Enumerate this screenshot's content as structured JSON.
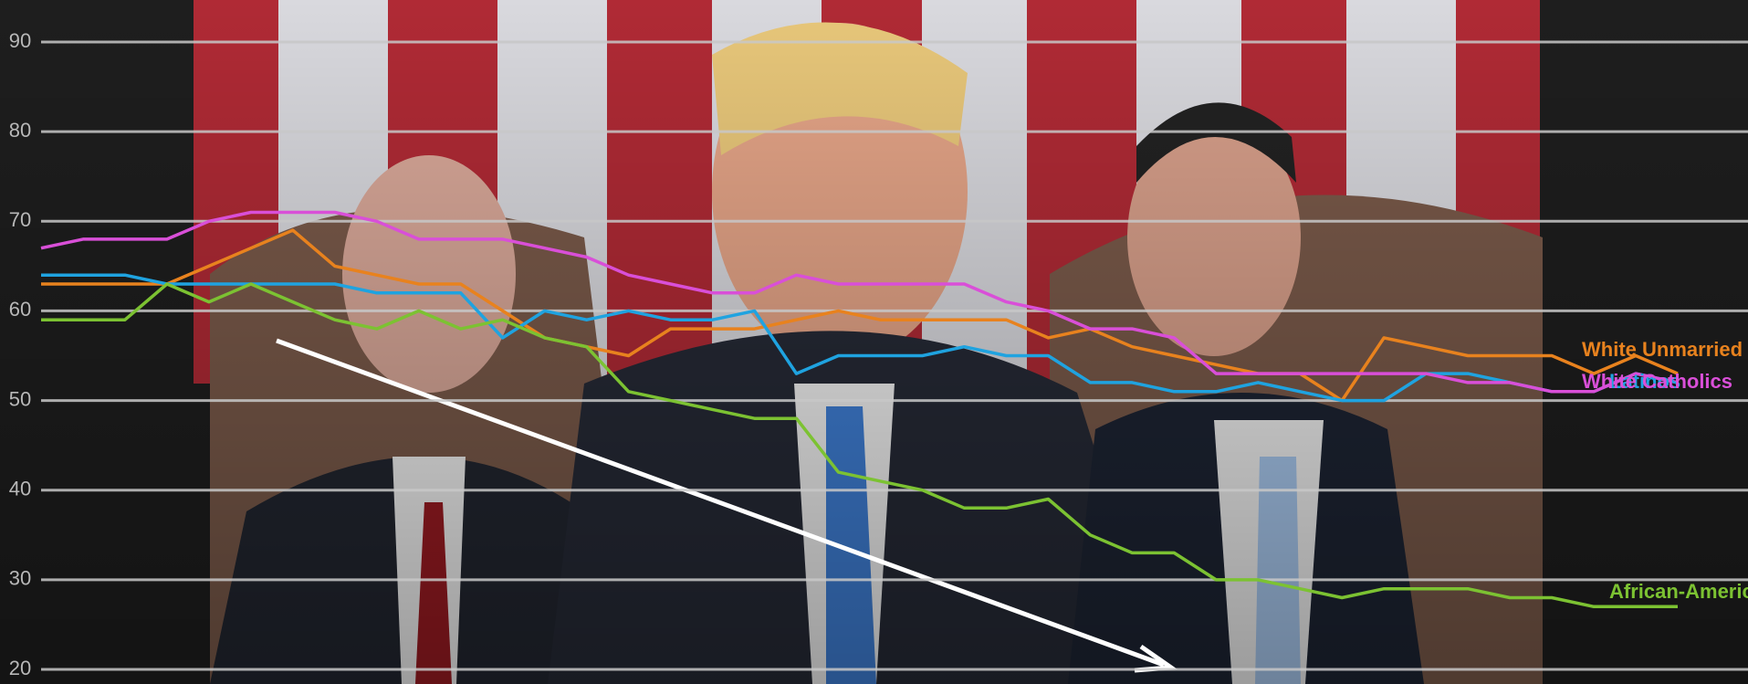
{
  "chart_data": {
    "type": "line",
    "ylim": [
      20,
      90
    ],
    "yticks": [
      20,
      30,
      40,
      50,
      60,
      70,
      80,
      90
    ],
    "grid": true,
    "series": [
      {
        "name": "White Unmarried Wo",
        "color": "#e8821e",
        "values": [
          63,
          63,
          63,
          63,
          65,
          67,
          69,
          65,
          64,
          63,
          63,
          60,
          57,
          56,
          55,
          58,
          58,
          58,
          59,
          60,
          59,
          59,
          59,
          59,
          57,
          58,
          56,
          55,
          54,
          53,
          53,
          50,
          57,
          56,
          55,
          55,
          55,
          53,
          55,
          53
        ]
      },
      {
        "name": "Latinos",
        "color": "#1fa3e0",
        "values": [
          64,
          64,
          64,
          63,
          63,
          63,
          63,
          63,
          62,
          62,
          62,
          57,
          60,
          59,
          60,
          59,
          59,
          60,
          53,
          55,
          55,
          55,
          56,
          55,
          55,
          52,
          52,
          51,
          51,
          52,
          51,
          50,
          50,
          53,
          53,
          52,
          51,
          51,
          53,
          52
        ]
      },
      {
        "name": "White Catholics",
        "color": "#d94fd8",
        "values": [
          67,
          68,
          68,
          68,
          70,
          71,
          71,
          71,
          70,
          68,
          68,
          68,
          67,
          66,
          64,
          63,
          62,
          62,
          64,
          63,
          63,
          63,
          63,
          61,
          60,
          58,
          58,
          57,
          53,
          53,
          53,
          53,
          53,
          53,
          52,
          52,
          51,
          51,
          53,
          52
        ]
      },
      {
        "name": "African-Americans",
        "color": "#7cc232",
        "values": [
          59,
          59,
          59,
          63,
          61,
          63,
          61,
          59,
          58,
          60,
          58,
          59,
          57,
          56,
          51,
          50,
          49,
          48,
          48,
          42,
          41,
          40,
          38,
          38,
          39,
          35,
          33,
          33,
          30,
          30,
          29,
          28,
          29,
          29,
          29,
          28,
          28,
          27,
          27,
          27
        ]
      }
    ]
  }
}
